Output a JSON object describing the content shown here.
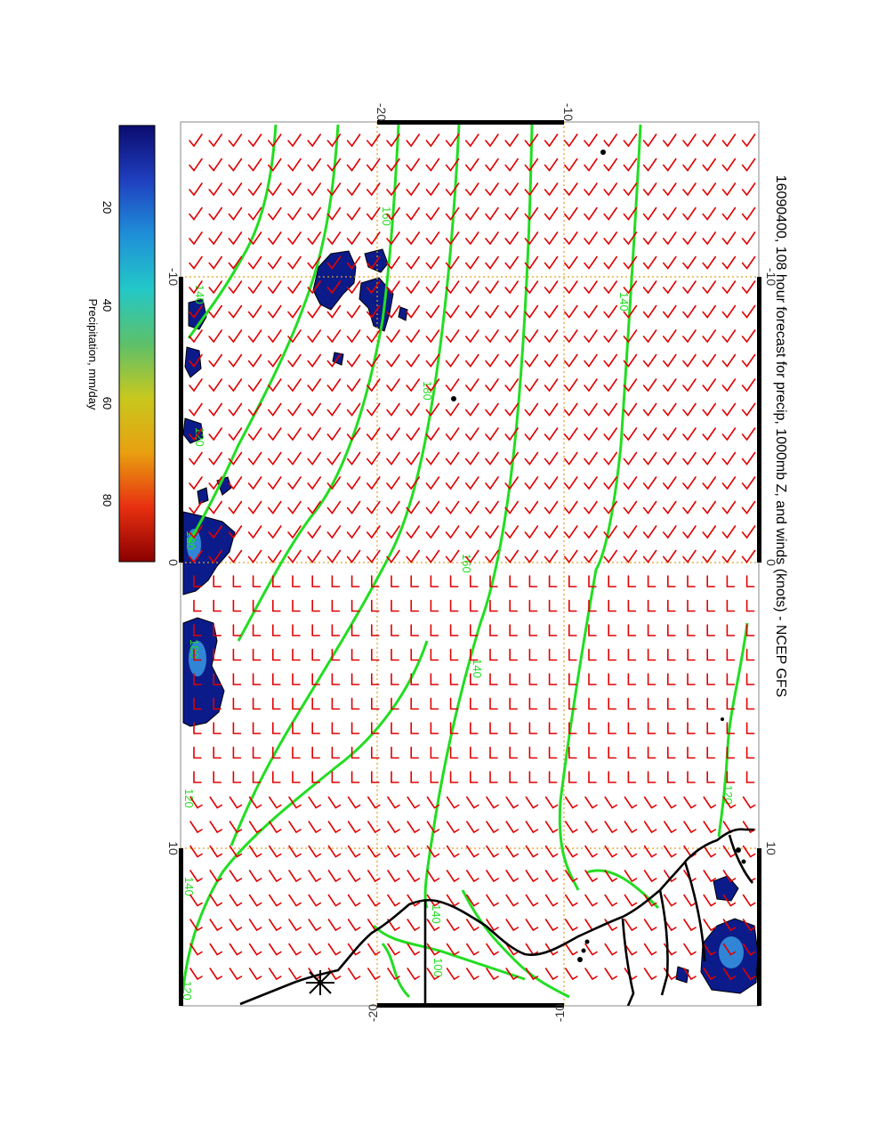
{
  "title": "16090400, 108 hour forecast for precip, 1000mb Z, and winds (knots) - NCEP GFS",
  "colorbar": {
    "label": "Precipitation, mm/day",
    "ticks": [
      "20",
      "40",
      "60",
      "80"
    ],
    "stops": [
      "#0b0b6e",
      "#1f3fc0",
      "#1f8fd8",
      "#23c8c8",
      "#5cc06a",
      "#c8c81e",
      "#e8a010",
      "#e83010",
      "#8a0000"
    ]
  },
  "axes": {
    "top_ticks": [
      "-20",
      "-10"
    ],
    "bottom_ticks": [
      "-20",
      "-10"
    ],
    "right_ticks": [
      "-10",
      "0",
      "10"
    ],
    "left_ticks": [
      "-10",
      "0",
      "10"
    ]
  },
  "contour_labels": [
    "140",
    "140",
    "180",
    "160",
    "140",
    "120",
    "140",
    "160",
    "120",
    "180",
    "140",
    "120",
    "120",
    "100",
    "120"
  ],
  "colors": {
    "barbs": "#e00000",
    "contours": "#22dd22",
    "coast": "#000000",
    "grid": "#e0a020",
    "precip": "#0b1b8a"
  }
}
